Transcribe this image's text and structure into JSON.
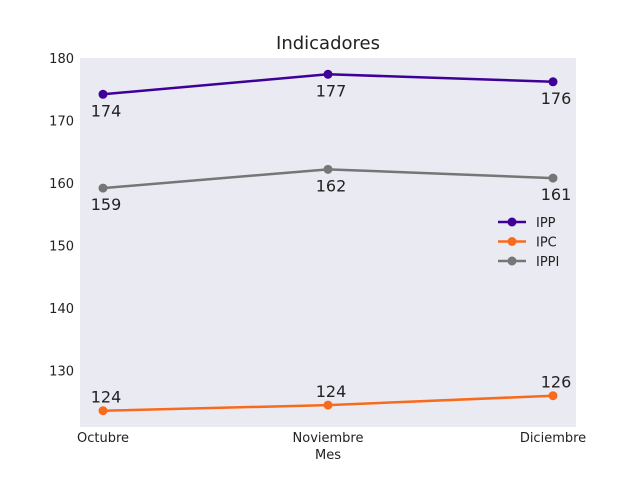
{
  "chart_data": {
    "type": "line",
    "title": "Indicadores",
    "xlabel": "Mes",
    "ylabel": "",
    "categories": [
      "Octubre",
      "Noviembre",
      "Diciembre"
    ],
    "yticks": [
      130,
      140,
      150,
      160,
      170,
      180
    ],
    "ylim": [
      121,
      180
    ],
    "grid": false,
    "legend_position": "right",
    "series": [
      {
        "name": "IPP",
        "values": [
          174.2,
          177.4,
          176.2
        ],
        "labels": [
          "174",
          "177",
          "176"
        ],
        "color": "#3f0099"
      },
      {
        "name": "IPC",
        "values": [
          123.6,
          124.5,
          126.0
        ],
        "labels": [
          "124",
          "124",
          "126"
        ],
        "color": "#f96b1c"
      },
      {
        "name": "IPPI",
        "values": [
          159.2,
          162.2,
          160.8
        ],
        "labels": [
          "159",
          "162",
          "161"
        ],
        "color": "#767676"
      }
    ],
    "plot_background": "#eaeaf2"
  }
}
